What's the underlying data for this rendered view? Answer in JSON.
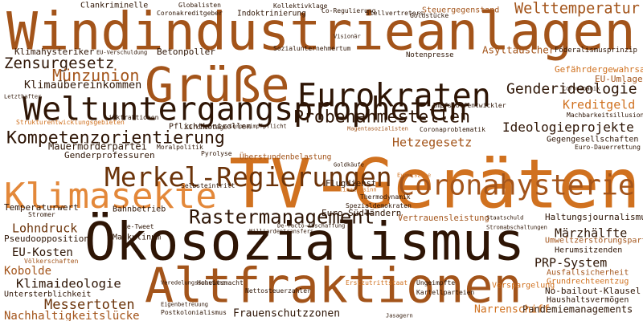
{
  "words": [
    "Windindustrieanlagen",
    "Grüße",
    "Eurokraten",
    "Weltuntergangspropheten",
    "TV-Geräten",
    "Klimasekte",
    "Ökosozialismus",
    "Altfraktionen",
    "Coronahysterie",
    "Merkel-Regierungen",
    "Rastermanagement",
    "Kompetenzorientierung",
    "Probenahmestellen",
    "Genderideologie",
    "Ideologieprojekte",
    "Welttemperatur",
    "Zensurgesetz",
    "Münzunion",
    "Klimaübereinkommen",
    "Klimahysteriker",
    "Betonpoller",
    "Asyltäuscher",
    "Gefährdergewahrsam",
    "EU-Umlage",
    "Kreditgeld",
    "Hetzegesetz",
    "Gegengesellschaften",
    "Mauermörderpartei",
    "Genderprofessuren",
    "Temperaturwert",
    "Bahnbetrieb",
    "Lohndruck",
    "Pseudoopposition",
    "EU-Kosten",
    "Kobolde",
    "Klimaideologie",
    "Messertoten",
    "Nachhaltigkeitslücke",
    "Märzhälfte",
    "Haltungsjournalismus",
    "Umweltzerstörungspartei",
    "Herumsitzenden",
    "PRP-System",
    "Ausfallsicherheit",
    "Grundrechteentzug",
    "No-bailout-Klausel",
    "Haushaltsvermögen",
    "Pandemiemanagements",
    "Narrenschiff",
    "Verspargelung",
    "Frauenschutzzonen",
    "Vertrauensleistung",
    "Euro-Südländern",
    "Flugdienst",
    "Maskulinum",
    "Selbsteintritt",
    "Pflichtkontrollen",
    "Linkfraktionen",
    "Überstundenbelastung",
    "Kirchentage",
    "Moralpolitik",
    "Pyrolyse",
    "Hoheitsmacht",
    "Erstzutrittstaat",
    "Ungeimpfte",
    "Kartellparteien",
    "Clankriminelle",
    "Globalisten",
    "Coronakreditgeber",
    "Indoktrinierung",
    "Kollektivklage",
    "Steuergegenstand",
    "Goldstücke",
    "Notenpresse",
    "Impfstoffentwickler",
    "Magentasozialisten",
    "Coronaproblematik",
    "Eventszene",
    "Thermodynamik",
    "Strukturentwicklungsgebieten",
    "Sozialunternehmertum",
    "Visionär",
    "Letzthafter",
    "EU-Verschuldung",
    "Stellvertreters",
    "Co-Regulierung",
    "Coronapanik",
    "Föderalismusprinzip",
    "Machbarkeitsillusion",
    "Euro-Dauerrettung",
    "Stromer",
    "Re-Tweet",
    "Völkerschaften",
    "Untersterblichkeit",
    "Eigenbetreuung",
    "Postkolonialismus",
    "Spezialdemokraten",
    "Goldkäufe",
    "Klimairrsinn",
    "Milliardentransfers",
    "De-facto-Abschaffung",
    "Nettosteuerzahler",
    "Veredelungssubstanz",
    "Coronaimpfpflicht",
    "Jasagern",
    "Stromabschaltungen",
    "Staatschuld"
  ]
}
